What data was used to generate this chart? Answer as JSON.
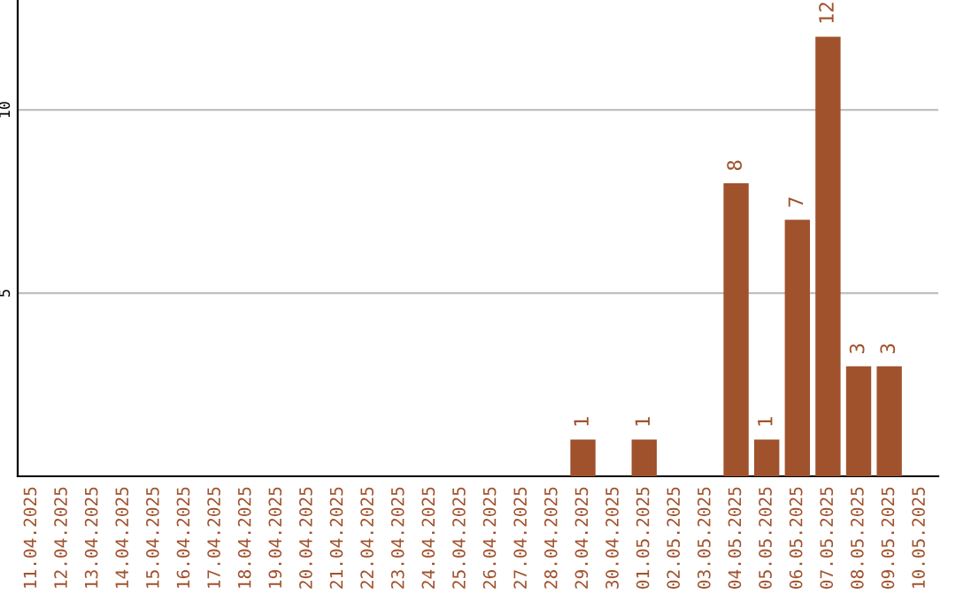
{
  "chart_data": {
    "type": "bar",
    "categories": [
      "11.04.2025",
      "12.04.2025",
      "13.04.2025",
      "14.04.2025",
      "15.04.2025",
      "16.04.2025",
      "17.04.2025",
      "18.04.2025",
      "19.04.2025",
      "20.04.2025",
      "21.04.2025",
      "22.04.2025",
      "23.04.2025",
      "24.04.2025",
      "25.04.2025",
      "26.04.2025",
      "27.04.2025",
      "28.04.2025",
      "29.04.2025",
      "30.04.2025",
      "01.05.2025",
      "02.05.2025",
      "03.05.2025",
      "04.05.2025",
      "05.05.2025",
      "06.05.2025",
      "07.05.2025",
      "08.05.2025",
      "09.05.2025",
      "10.05.2025"
    ],
    "values": [
      null,
      null,
      null,
      null,
      null,
      null,
      null,
      null,
      null,
      null,
      null,
      null,
      null,
      null,
      null,
      null,
      null,
      null,
      1,
      null,
      1,
      null,
      null,
      8,
      1,
      7,
      12,
      3,
      3,
      null
    ],
    "color": "#a0522d",
    "ylim": [
      0,
      13
    ],
    "yticks": [
      5,
      10
    ],
    "grid": "y",
    "data_labels": true
  }
}
